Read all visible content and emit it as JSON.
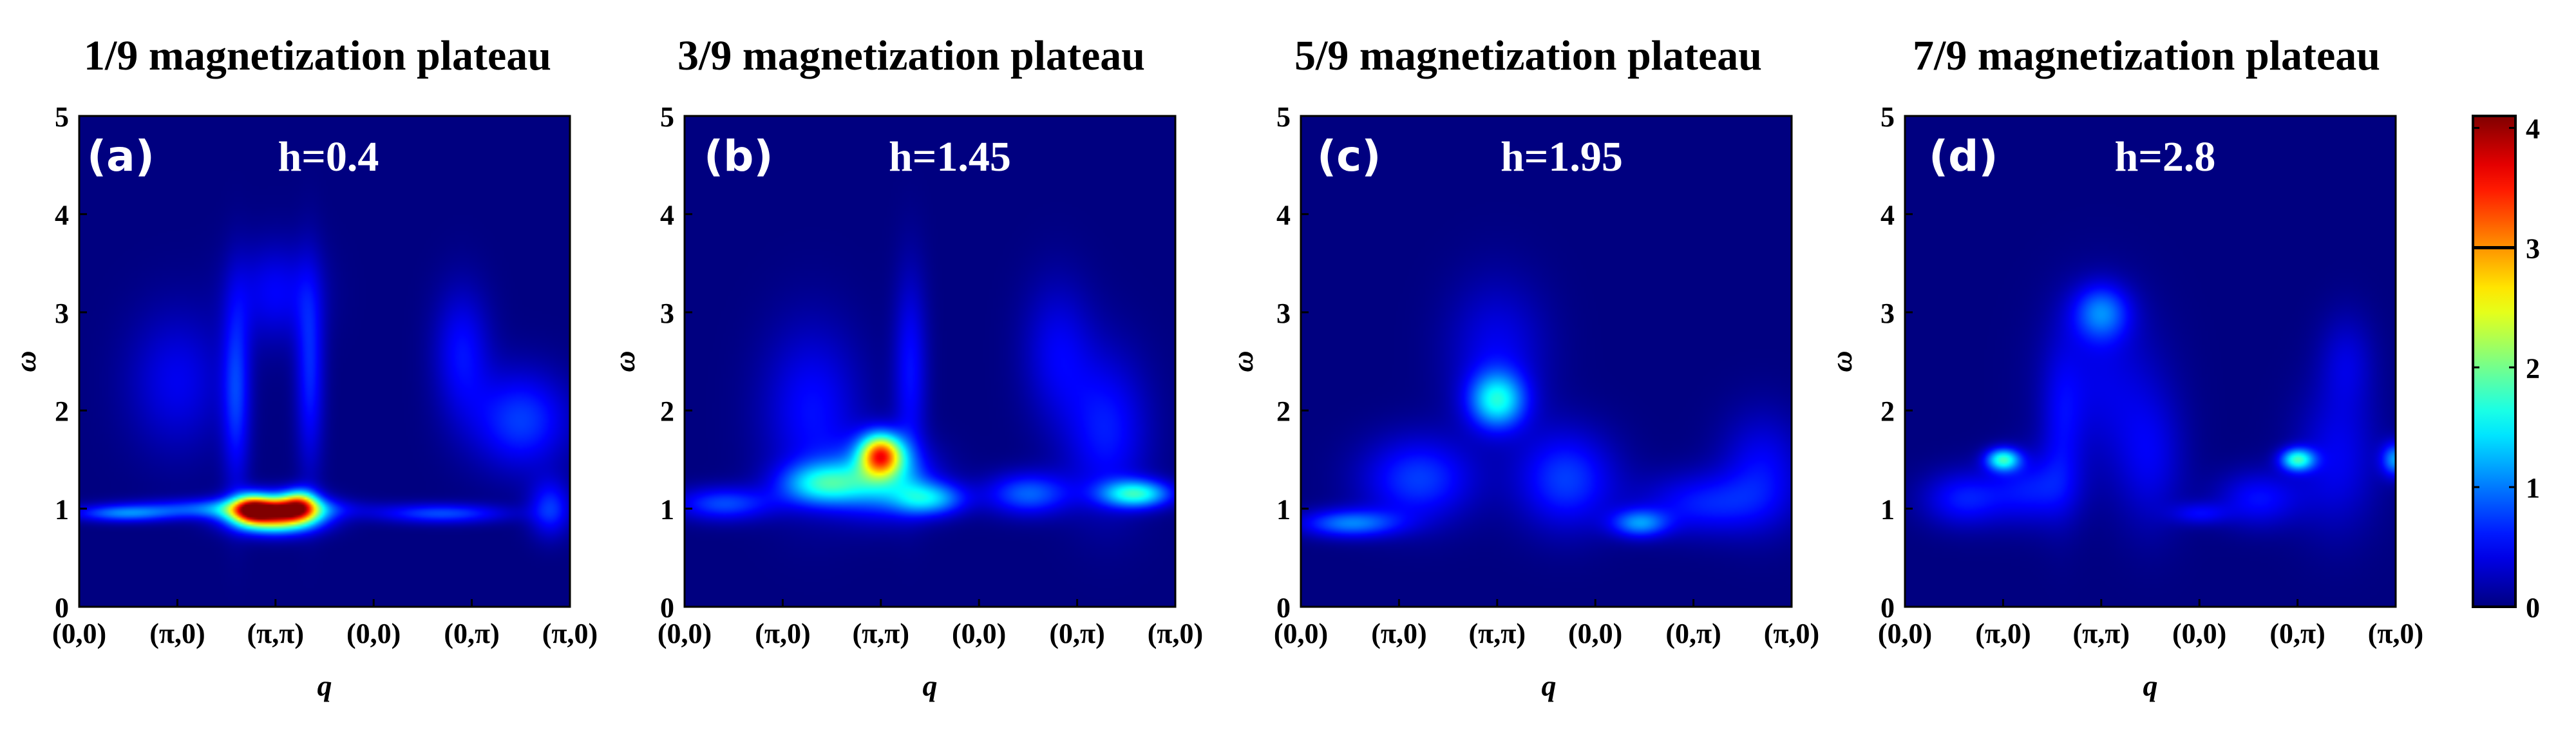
{
  "figure": {
    "colorbar": {
      "ticks": [
        "0",
        "1",
        "2",
        "3",
        "4"
      ],
      "range": [
        0,
        4.1
      ],
      "marker_value": 3.0
    }
  },
  "chart_data": [
    {
      "type": "heatmap",
      "title": "1/9 magnetization plateau",
      "panel_label": "(a)",
      "annotation": "h=0.4",
      "xlabel": "q",
      "ylabel": "ω",
      "ylim": [
        0,
        5
      ],
      "y_ticks": [
        "0",
        "1",
        "2",
        "3",
        "4",
        "5"
      ],
      "x_ticks": [
        "(0,0)",
        "(π,0)",
        "(π,π)",
        "(0,0)",
        "(0,π)",
        "(π,0)"
      ],
      "features": [
        {
          "x": 0.45,
          "y": 0.95,
          "sx": 0.35,
          "sy": 0.06,
          "v": 0.9
        },
        {
          "x": 1.6,
          "y": 1.0,
          "sx": 0.7,
          "sy": 0.07,
          "v": 0.95
        },
        {
          "x": 2.0,
          "y": 0.95,
          "sx": 0.3,
          "sy": 0.12,
          "v": 3.8
        },
        {
          "x": 1.75,
          "y": 1.0,
          "sx": 0.12,
          "sy": 0.1,
          "v": 1.6
        },
        {
          "x": 2.25,
          "y": 1.05,
          "sx": 0.12,
          "sy": 0.1,
          "v": 1.6
        },
        {
          "x": 1.6,
          "y": 2.2,
          "sx": 0.1,
          "sy": 0.7,
          "v": 0.7
        },
        {
          "x": 2.35,
          "y": 2.4,
          "sx": 0.1,
          "sy": 0.7,
          "v": 0.65
        },
        {
          "x": 2.0,
          "y": 3.2,
          "sx": 0.3,
          "sy": 0.35,
          "v": 0.5
        },
        {
          "x": 1.0,
          "y": 2.3,
          "sx": 0.35,
          "sy": 0.5,
          "v": 0.45
        },
        {
          "x": 3.7,
          "y": 0.95,
          "sx": 0.45,
          "sy": 0.07,
          "v": 0.8
        },
        {
          "x": 4.5,
          "y": 1.9,
          "sx": 0.35,
          "sy": 0.35,
          "v": 0.75
        },
        {
          "x": 3.9,
          "y": 2.6,
          "sx": 0.2,
          "sy": 0.45,
          "v": 0.55
        },
        {
          "x": 4.8,
          "y": 1.0,
          "sx": 0.15,
          "sy": 0.2,
          "v": 0.7
        }
      ]
    },
    {
      "type": "heatmap",
      "title": "3/9 magnetization plateau",
      "panel_label": "(b)",
      "annotation": "h=1.45",
      "xlabel": "q",
      "ylabel": "ω",
      "ylim": [
        0,
        5
      ],
      "y_ticks": [
        "0",
        "1",
        "2",
        "3",
        "4",
        "5"
      ],
      "x_ticks": [
        "(0,0)",
        "(π,0)",
        "(π,π)",
        "(0,0)",
        "(0,π)",
        "(π,0)"
      ],
      "features": [
        {
          "x": 0.4,
          "y": 1.05,
          "sx": 0.35,
          "sy": 0.12,
          "v": 0.8
        },
        {
          "x": 1.4,
          "y": 1.25,
          "sx": 0.3,
          "sy": 0.15,
          "v": 1.3
        },
        {
          "x": 2.0,
          "y": 1.55,
          "sx": 0.15,
          "sy": 0.15,
          "v": 2.8
        },
        {
          "x": 2.0,
          "y": 1.3,
          "sx": 0.35,
          "sy": 0.25,
          "v": 1.2
        },
        {
          "x": 2.5,
          "y": 1.1,
          "sx": 0.25,
          "sy": 0.12,
          "v": 1.2
        },
        {
          "x": 1.3,
          "y": 2.0,
          "sx": 0.35,
          "sy": 0.6,
          "v": 0.55
        },
        {
          "x": 2.3,
          "y": 2.4,
          "sx": 0.12,
          "sy": 0.7,
          "v": 0.55
        },
        {
          "x": 3.5,
          "y": 1.15,
          "sx": 0.3,
          "sy": 0.15,
          "v": 0.9
        },
        {
          "x": 4.6,
          "y": 1.15,
          "sx": 0.25,
          "sy": 0.1,
          "v": 1.6
        },
        {
          "x": 4.3,
          "y": 1.8,
          "sx": 0.3,
          "sy": 0.55,
          "v": 0.6
        },
        {
          "x": 3.8,
          "y": 2.6,
          "sx": 0.25,
          "sy": 0.5,
          "v": 0.45
        }
      ]
    },
    {
      "type": "heatmap",
      "title": "5/9 magnetization plateau",
      "panel_label": "(c)",
      "annotation": "h=1.95",
      "xlabel": "q",
      "ylabel": "ω",
      "ylim": [
        0,
        5
      ],
      "y_ticks": [
        "0",
        "1",
        "2",
        "3",
        "4",
        "5"
      ],
      "x_ticks": [
        "(0,0)",
        "(π,0)",
        "(π,π)",
        "(0,0)",
        "(0,π)",
        "(π,0)"
      ],
      "features": [
        {
          "x": 0.5,
          "y": 0.85,
          "sx": 0.35,
          "sy": 0.1,
          "v": 1.0
        },
        {
          "x": 1.2,
          "y": 1.3,
          "sx": 0.4,
          "sy": 0.3,
          "v": 0.75
        },
        {
          "x": 2.0,
          "y": 2.1,
          "sx": 0.2,
          "sy": 0.2,
          "v": 1.4
        },
        {
          "x": 2.0,
          "y": 2.6,
          "sx": 0.35,
          "sy": 0.5,
          "v": 0.45
        },
        {
          "x": 2.7,
          "y": 1.3,
          "sx": 0.35,
          "sy": 0.35,
          "v": 0.75
        },
        {
          "x": 3.45,
          "y": 0.85,
          "sx": 0.2,
          "sy": 0.1,
          "v": 1.0
        },
        {
          "x": 4.1,
          "y": 1.05,
          "sx": 0.45,
          "sy": 0.22,
          "v": 0.6
        },
        {
          "x": 4.7,
          "y": 1.4,
          "sx": 0.3,
          "sy": 0.4,
          "v": 0.5
        }
      ]
    },
    {
      "type": "heatmap",
      "title": "7/9 magnetization plateau",
      "panel_label": "(d)",
      "annotation": "h=2.8",
      "xlabel": "q",
      "ylabel": "ω",
      "ylim": [
        0,
        5
      ],
      "y_ticks": [
        "0",
        "1",
        "2",
        "3",
        "4",
        "5"
      ],
      "x_ticks": [
        "(0,0)",
        "(π,0)",
        "(π,π)",
        "(0,0)",
        "(0,π)",
        "(π,0)"
      ],
      "features": [
        {
          "x": 1.0,
          "y": 1.5,
          "sx": 0.12,
          "sy": 0.08,
          "v": 1.6
        },
        {
          "x": 0.6,
          "y": 1.1,
          "sx": 0.3,
          "sy": 0.2,
          "v": 0.6
        },
        {
          "x": 1.3,
          "y": 1.2,
          "sx": 0.3,
          "sy": 0.25,
          "v": 0.55
        },
        {
          "x": 2.0,
          "y": 3.0,
          "sx": 0.2,
          "sy": 0.2,
          "v": 0.9
        },
        {
          "x": 2.0,
          "y": 2.3,
          "sx": 0.4,
          "sy": 0.6,
          "v": 0.4
        },
        {
          "x": 1.6,
          "y": 1.8,
          "sx": 0.15,
          "sy": 0.6,
          "v": 0.35
        },
        {
          "x": 2.5,
          "y": 1.5,
          "sx": 0.25,
          "sy": 0.5,
          "v": 0.4
        },
        {
          "x": 3.0,
          "y": 0.95,
          "sx": 0.2,
          "sy": 0.08,
          "v": 0.45
        },
        {
          "x": 4.0,
          "y": 1.5,
          "sx": 0.12,
          "sy": 0.08,
          "v": 1.6
        },
        {
          "x": 3.6,
          "y": 1.1,
          "sx": 0.3,
          "sy": 0.2,
          "v": 0.55
        },
        {
          "x": 4.4,
          "y": 1.5,
          "sx": 0.3,
          "sy": 0.5,
          "v": 0.45
        },
        {
          "x": 4.5,
          "y": 2.5,
          "sx": 0.2,
          "sy": 0.35,
          "v": 0.35
        },
        {
          "x": 5.0,
          "y": 1.5,
          "sx": 0.1,
          "sy": 0.12,
          "v": 1.1
        }
      ]
    }
  ]
}
